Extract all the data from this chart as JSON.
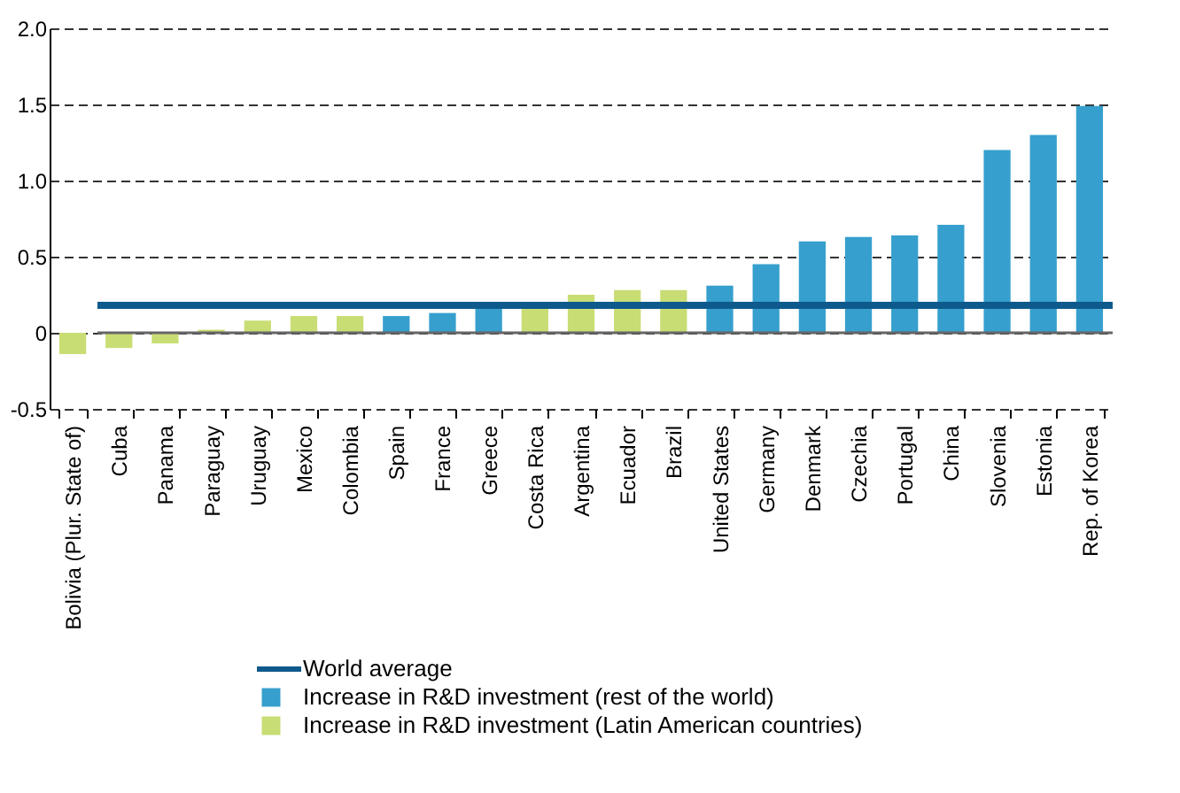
{
  "chart_data": {
    "type": "bar",
    "categories": [
      "Bolivia (Plur. State of)",
      "Cuba",
      "Panama",
      "Paraguay",
      "Uruguay",
      "Mexico",
      "Colombia",
      "Spain",
      "France",
      "Greece",
      "Costa Rica",
      "Argentina",
      "Ecuador",
      "Brazil",
      "United States",
      "Germany",
      "Denmark",
      "Czechia",
      "Portugal",
      "China",
      "Slovenia",
      "Estonia",
      "Rep. of Korea"
    ],
    "series": [
      {
        "name": "Increase in R&D investment (Latin American countries)",
        "color": "#c8dd74",
        "values": [
          -0.14,
          -0.1,
          -0.07,
          0.02,
          0.08,
          0.11,
          0.11,
          null,
          null,
          null,
          0.17,
          0.25,
          0.28,
          0.28,
          null,
          null,
          null,
          null,
          null,
          null,
          null,
          null,
          null
        ]
      },
      {
        "name": "Increase in R&D investment (rest of the world)",
        "color": "#369fcd",
        "values": [
          null,
          null,
          null,
          null,
          null,
          null,
          null,
          0.11,
          0.13,
          0.18,
          null,
          null,
          null,
          null,
          0.31,
          0.45,
          0.6,
          0.63,
          0.64,
          0.71,
          1.2,
          1.3,
          1.49
        ]
      }
    ],
    "ref_lines": [
      {
        "axis": "y",
        "value": 0.18,
        "label": "World average",
        "color": "#0e5a8c",
        "line_style": "solid"
      },
      {
        "axis": "y",
        "value": 0,
        "color": "#666666",
        "line_style": "solid"
      }
    ],
    "ylim": [
      -0.5,
      2.0
    ],
    "yticks": [
      -0.5,
      0,
      0.5,
      {
        "value": 1.0,
        "label": "1.0"
      },
      1.5,
      {
        "value": 2.0,
        "label": "2.0"
      }
    ],
    "grid": "y",
    "legend": "bottom"
  }
}
